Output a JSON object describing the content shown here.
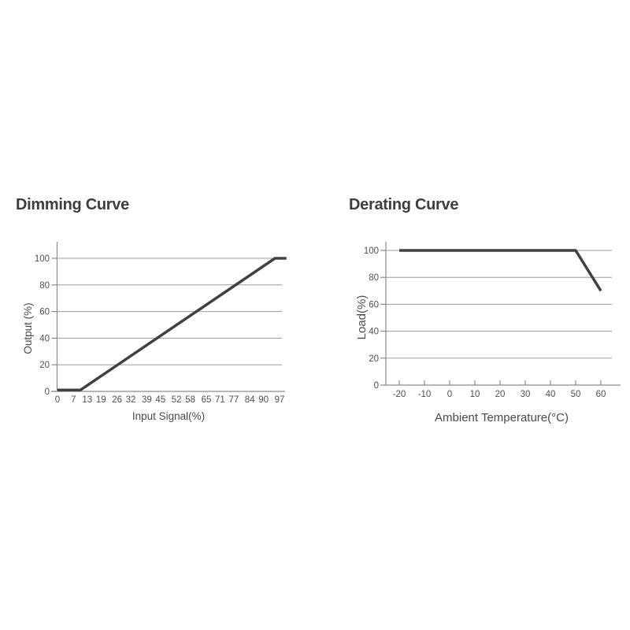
{
  "page": {
    "background_color": "#ffffff"
  },
  "colors": {
    "title": "#3d3d3d",
    "tick_text": "#4f4f4f",
    "grid": "#9b9b9b",
    "axis": "#8a8a8a",
    "data_line": "#414141"
  },
  "chart_data": [
    {
      "type": "line",
      "title": "Dimming Curve",
      "xlabel": "Input Signal(%)",
      "ylabel": "Output (%)",
      "x_tick_labels": [
        0,
        7,
        13,
        19,
        26,
        32,
        39,
        45,
        52,
        58,
        65,
        71,
        77,
        84,
        90,
        97
      ],
      "y_tick_labels": [
        0,
        20,
        40,
        60,
        80,
        100
      ],
      "xlim": [
        0,
        100
      ],
      "ylim": [
        0,
        100
      ],
      "grid": "horizontal",
      "legend": "none",
      "series": [
        {
          "name": "output-vs-input",
          "x": [
            0,
            10,
            95,
            100
          ],
          "y": [
            1,
            1,
            100,
            100
          ]
        }
      ]
    },
    {
      "type": "line",
      "title": "Derating Curve",
      "xlabel": "Ambient Temperature(°C)",
      "ylabel": "Load(%)",
      "x_tick_labels": [
        -20,
        -10,
        0,
        10,
        20,
        30,
        40,
        50,
        60
      ],
      "y_tick_labels": [
        0,
        20,
        40,
        60,
        80,
        100
      ],
      "xlim": [
        -25,
        65
      ],
      "ylim": [
        0,
        100
      ],
      "grid": "horizontal",
      "legend": "none",
      "series": [
        {
          "name": "load-vs-temperature",
          "x": [
            -20,
            50,
            60
          ],
          "y": [
            100,
            100,
            70
          ]
        }
      ]
    }
  ]
}
